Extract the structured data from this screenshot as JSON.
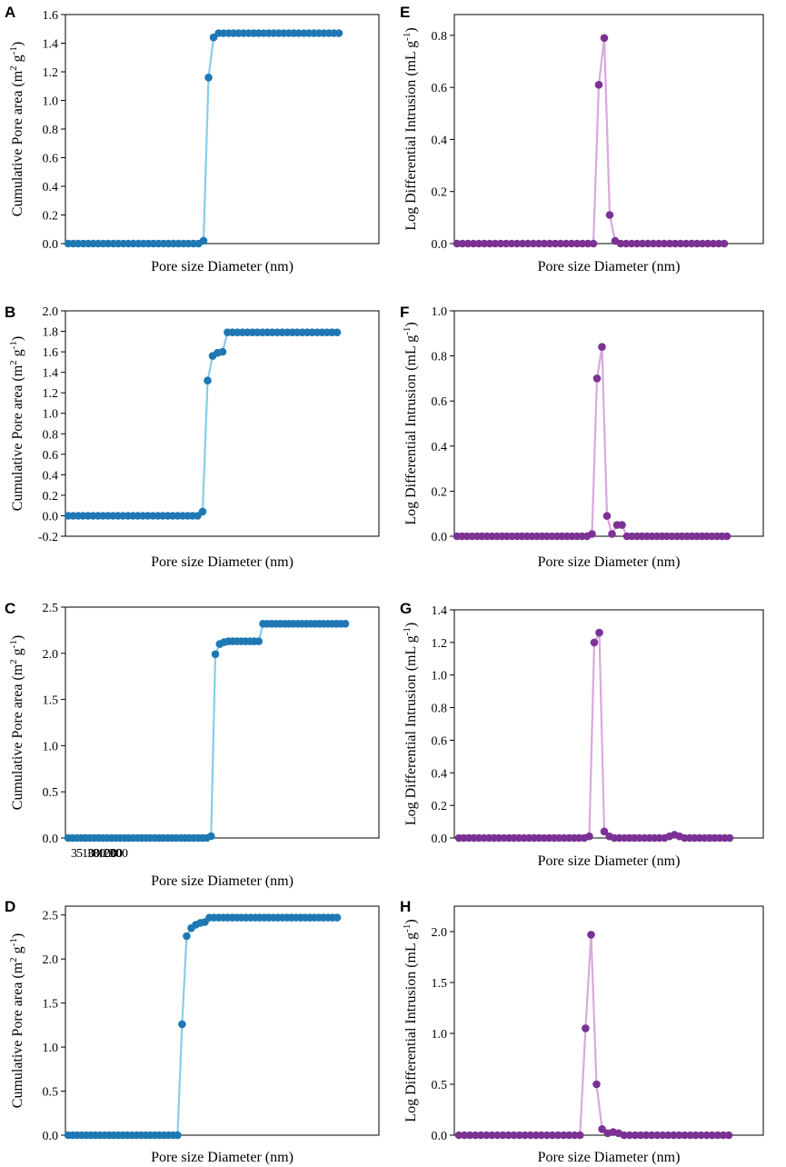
{
  "colors": {
    "blue_line": "#87cdea",
    "blue_marker": "#1f78b4",
    "purple_line": "#d9a8dd",
    "purple_marker": "#7b3294"
  },
  "chart_data": [
    {
      "panel": "A",
      "type": "line",
      "xlabel": "Pore size Diameter (nm)",
      "ylabel": "Cumulative Pore area (m2 g-1)",
      "ylabel_parts": [
        "Cumulative Pore area (m",
        "2",
        " g",
        "-1",
        ")"
      ],
      "ylim": [
        0,
        1.6
      ],
      "yticks": [
        "0.0",
        "0.2",
        "0.4",
        "0.6",
        "0.8",
        "1.0",
        "1.2",
        "1.4",
        "1.6"
      ],
      "xticklabels": [],
      "x": [
        0,
        1,
        2,
        3,
        4,
        5,
        6,
        7,
        8,
        9,
        10,
        11,
        12,
        13,
        14,
        15,
        16,
        17,
        18,
        19,
        20,
        21,
        22,
        23,
        24,
        25,
        26,
        27,
        28,
        29,
        30,
        31,
        32,
        33,
        34,
        35,
        36,
        37,
        38,
        39,
        40,
        41,
        42,
        43,
        44,
        45,
        46,
        47,
        48,
        49,
        50,
        51,
        52,
        53,
        54
      ],
      "y": [
        0,
        0,
        0,
        0,
        0,
        0,
        0,
        0,
        0,
        0,
        0,
        0,
        0,
        0,
        0,
        0,
        0,
        0,
        0,
        0,
        0,
        0,
        0,
        0,
        0,
        0,
        0,
        0.02,
        1.16,
        1.44,
        1.47,
        1.47,
        1.47,
        1.47,
        1.47,
        1.47,
        1.47,
        1.47,
        1.47,
        1.47,
        1.47,
        1.47,
        1.47,
        1.47,
        1.47,
        1.47,
        1.47,
        1.47,
        1.47,
        1.47,
        1.47,
        1.47,
        1.47,
        1.47,
        1.47
      ]
    },
    {
      "panel": "B",
      "type": "line",
      "xlabel": "Pore size Diameter (nm)",
      "ylabel": "Cumulative Pore area (m2 g-1)",
      "ylabel_parts": [
        "Cumulative Pore area (m",
        "2",
        " g",
        "-1",
        ")"
      ],
      "ylim": [
        -0.2,
        2.0
      ],
      "yticks": [
        "-0.2",
        "0.0",
        "0.2",
        "0.4",
        "0.6",
        "0.8",
        "1.0",
        "1.2",
        "1.4",
        "1.6",
        "1.8",
        "2.0"
      ],
      "xticklabels": [],
      "x": [
        0,
        1,
        2,
        3,
        4,
        5,
        6,
        7,
        8,
        9,
        10,
        11,
        12,
        13,
        14,
        15,
        16,
        17,
        18,
        19,
        20,
        21,
        22,
        23,
        24,
        25,
        26,
        27,
        28,
        29,
        30,
        31,
        32,
        33,
        34,
        35,
        36,
        37,
        38,
        39,
        40,
        41,
        42,
        43,
        44,
        45,
        46,
        47,
        48,
        49,
        50,
        51,
        52,
        53,
        54
      ],
      "y": [
        0,
        0,
        0,
        0,
        0,
        0,
        0,
        0,
        0,
        0,
        0,
        0,
        0,
        0,
        0,
        0,
        0,
        0,
        0,
        0,
        0,
        0,
        0,
        0,
        0,
        0,
        0,
        0.04,
        1.32,
        1.56,
        1.59,
        1.6,
        1.79,
        1.79,
        1.79,
        1.79,
        1.79,
        1.79,
        1.79,
        1.79,
        1.79,
        1.79,
        1.79,
        1.79,
        1.79,
        1.79,
        1.79,
        1.79,
        1.79,
        1.79,
        1.79,
        1.79,
        1.79,
        1.79,
        1.79
      ]
    },
    {
      "panel": "C",
      "type": "line",
      "xlabel": "Pore size Diameter (nm)",
      "ylabel": "Cumulative Pore area (m2 g-1)",
      "ylabel_parts": [
        "Cumulative Pore area (m",
        "2",
        " g",
        "-1",
        ")"
      ],
      "ylim": [
        0,
        2.5
      ],
      "yticks": [
        "0.0",
        "0.5",
        "1.0",
        "1.5",
        "2.0",
        "2.5"
      ],
      "xticklabels": [
        "3",
        "5",
        "10",
        "30",
        "80",
        "100",
        "200",
        "300"
      ],
      "x": [
        0,
        1,
        2,
        3,
        4,
        5,
        6,
        7,
        8,
        9,
        10,
        11,
        12,
        13,
        14,
        15,
        16,
        17,
        18,
        19,
        20,
        21,
        22,
        23,
        24,
        25,
        26,
        27,
        28,
        29,
        30,
        31,
        32,
        33,
        34,
        35,
        36,
        37,
        38,
        39,
        40,
        41,
        42,
        43,
        44,
        45,
        46,
        47,
        48,
        49,
        50,
        51,
        52,
        53,
        54,
        55,
        56,
        57,
        58,
        59,
        60,
        61,
        62,
        63,
        64
      ],
      "y": [
        0,
        0,
        0,
        0,
        0,
        0,
        0,
        0,
        0,
        0,
        0,
        0,
        0,
        0,
        0,
        0,
        0,
        0,
        0,
        0,
        0,
        0,
        0,
        0,
        0,
        0,
        0,
        0,
        0,
        0,
        0,
        0,
        0,
        0.02,
        1.99,
        2.1,
        2.12,
        2.13,
        2.13,
        2.13,
        2.13,
        2.13,
        2.13,
        2.13,
        2.13,
        2.32,
        2.32,
        2.32,
        2.32,
        2.32,
        2.32,
        2.32,
        2.32,
        2.32,
        2.32,
        2.32,
        2.32,
        2.32,
        2.32,
        2.32,
        2.32,
        2.32,
        2.32,
        2.32,
        2.32
      ]
    },
    {
      "panel": "D",
      "type": "line",
      "xlabel": "Pore size Diameter (nm)",
      "ylabel": "Cumulative Pore area (m2 g-1)",
      "ylabel_parts": [
        "Cumulative Pore area (m",
        "2",
        " g",
        "-1",
        ")"
      ],
      "ylim": [
        0,
        2.6
      ],
      "yticks": [
        "0.0",
        "0.5",
        "1.0",
        "1.5",
        "2.0",
        "2.5"
      ],
      "xticklabels": [],
      "x": [
        0,
        1,
        2,
        3,
        4,
        5,
        6,
        7,
        8,
        9,
        10,
        11,
        12,
        13,
        14,
        15,
        16,
        17,
        18,
        19,
        20,
        21,
        22,
        23,
        24,
        25,
        26,
        27,
        28,
        29,
        30,
        31,
        32,
        33,
        34,
        35,
        36,
        37,
        38,
        39,
        40,
        41,
        42,
        43,
        44,
        45,
        46,
        47,
        48,
        49,
        50,
        51,
        52,
        53,
        54,
        55,
        56,
        57,
        58,
        59
      ],
      "y": [
        0,
        0,
        0,
        0,
        0,
        0,
        0,
        0,
        0,
        0,
        0,
        0,
        0,
        0,
        0,
        0,
        0,
        0,
        0,
        0,
        0,
        0,
        0,
        0,
        0,
        1.26,
        2.26,
        2.35,
        2.39,
        2.41,
        2.42,
        2.47,
        2.47,
        2.47,
        2.47,
        2.47,
        2.47,
        2.47,
        2.47,
        2.47,
        2.47,
        2.47,
        2.47,
        2.47,
        2.47,
        2.47,
        2.47,
        2.47,
        2.47,
        2.47,
        2.47,
        2.47,
        2.47,
        2.47,
        2.47,
        2.47,
        2.47,
        2.47,
        2.47,
        2.47
      ]
    },
    {
      "panel": "E",
      "type": "line",
      "xlabel": "Pore size Diameter (nm)",
      "ylabel": "Log Differential Intrusion (mL g-1)",
      "ylabel_parts": [
        "Log Differential Intrusion (mL g",
        "-1",
        ")"
      ],
      "ylim": [
        0,
        0.88
      ],
      "yticks": [
        "0.0",
        "0.2",
        "0.4",
        "0.6",
        "0.8"
      ],
      "xticklabels": [],
      "x": [
        0,
        1,
        2,
        3,
        4,
        5,
        6,
        7,
        8,
        9,
        10,
        11,
        12,
        13,
        14,
        15,
        16,
        17,
        18,
        19,
        20,
        21,
        22,
        23,
        24,
        25,
        26,
        27,
        28,
        29,
        30,
        31,
        32,
        33,
        34,
        35,
        36,
        37,
        38,
        39,
        40,
        41,
        42,
        43,
        44,
        45,
        46,
        47,
        48,
        49
      ],
      "y": [
        0,
        0,
        0,
        0,
        0,
        0,
        0,
        0,
        0,
        0,
        0,
        0,
        0,
        0,
        0,
        0,
        0,
        0,
        0,
        0,
        0,
        0,
        0,
        0,
        0,
        0,
        0.61,
        0.79,
        0.11,
        0.01,
        0,
        0,
        0,
        0,
        0,
        0,
        0,
        0,
        0,
        0,
        0,
        0,
        0,
        0,
        0,
        0,
        0,
        0,
        0,
        0
      ]
    },
    {
      "panel": "F",
      "type": "line",
      "xlabel": "Pore size Diameter (nm)",
      "ylabel": "Log Differential Intrusion (mL g-1)",
      "ylabel_parts": [
        "Log Differential Intrusion (mL g",
        "-1",
        ")"
      ],
      "ylim": [
        0,
        1.0
      ],
      "yticks": [
        "0.0",
        "0.2",
        "0.4",
        "0.6",
        "0.8",
        "1.0"
      ],
      "xticklabels": [],
      "x": [
        0,
        1,
        2,
        3,
        4,
        5,
        6,
        7,
        8,
        9,
        10,
        11,
        12,
        13,
        14,
        15,
        16,
        17,
        18,
        19,
        20,
        21,
        22,
        23,
        24,
        25,
        26,
        27,
        28,
        29,
        30,
        31,
        32,
        33,
        34,
        35,
        36,
        37,
        38,
        39,
        40,
        41,
        42,
        43,
        44,
        45,
        46,
        47,
        48,
        49,
        50,
        51,
        52,
        53,
        54
      ],
      "y": [
        0,
        0,
        0,
        0,
        0,
        0,
        0,
        0,
        0,
        0,
        0,
        0,
        0,
        0,
        0,
        0,
        0,
        0,
        0,
        0,
        0,
        0,
        0,
        0,
        0,
        0,
        0,
        0.01,
        0.7,
        0.84,
        0.09,
        0.01,
        0.05,
        0.05,
        0,
        0,
        0,
        0,
        0,
        0,
        0,
        0,
        0,
        0,
        0,
        0,
        0,
        0,
        0,
        0,
        0,
        0,
        0,
        0,
        0
      ]
    },
    {
      "panel": "G",
      "type": "line",
      "xlabel": "Pore size Diameter (nm)",
      "ylabel": "Log Differential Intrusion (mL g-1)",
      "ylabel_parts": [
        "Log Differential Intrusion (mL g",
        "-1",
        ")"
      ],
      "ylim": [
        0,
        1.4
      ],
      "yticks": [
        "0.0",
        "0.2",
        "0.4",
        "0.6",
        "0.8",
        "1.0",
        "1.2",
        "1.4"
      ],
      "xticklabels": [],
      "x": [
        0,
        1,
        2,
        3,
        4,
        5,
        6,
        7,
        8,
        9,
        10,
        11,
        12,
        13,
        14,
        15,
        16,
        17,
        18,
        19,
        20,
        21,
        22,
        23,
        24,
        25,
        26,
        27,
        28,
        29,
        30,
        31,
        32,
        33,
        34,
        35,
        36,
        37,
        38,
        39,
        40,
        41,
        42,
        43,
        44,
        45,
        46,
        47,
        48,
        49,
        50,
        51,
        52,
        53,
        54
      ],
      "y": [
        0,
        0,
        0,
        0,
        0,
        0,
        0,
        0,
        0,
        0,
        0,
        0,
        0,
        0,
        0,
        0,
        0,
        0,
        0,
        0,
        0,
        0,
        0,
        0,
        0,
        0,
        0.01,
        1.2,
        1.26,
        0.04,
        0.01,
        0,
        0,
        0,
        0,
        0,
        0,
        0,
        0,
        0,
        0,
        0,
        0.01,
        0.02,
        0.01,
        0,
        0,
        0,
        0,
        0,
        0,
        0,
        0,
        0,
        0
      ]
    },
    {
      "panel": "H",
      "type": "line",
      "xlabel": "Pore size Diameter (nm)",
      "ylabel": "Log Differential Intrusion (mL g-1)",
      "ylabel_parts": [
        "Log Differential Intrusion (mL g",
        "-1",
        ")"
      ],
      "ylim": [
        0,
        2.25
      ],
      "yticks": [
        "0.0",
        "0.5",
        "1.0",
        "1.5",
        "2.0"
      ],
      "xticklabels": [],
      "x": [
        0,
        1,
        2,
        3,
        4,
        5,
        6,
        7,
        8,
        9,
        10,
        11,
        12,
        13,
        14,
        15,
        16,
        17,
        18,
        19,
        20,
        21,
        22,
        23,
        24,
        25,
        26,
        27,
        28,
        29,
        30,
        31,
        32,
        33,
        34,
        35,
        36,
        37,
        38,
        39,
        40,
        41,
        42,
        43,
        44,
        45,
        46,
        47,
        48,
        49
      ],
      "y": [
        0,
        0,
        0,
        0,
        0,
        0,
        0,
        0,
        0,
        0,
        0,
        0,
        0,
        0,
        0,
        0,
        0,
        0,
        0,
        0,
        0,
        0,
        0,
        1.05,
        1.97,
        0.5,
        0.06,
        0.02,
        0.03,
        0.02,
        0,
        0,
        0,
        0,
        0,
        0,
        0,
        0,
        0,
        0,
        0,
        0,
        0,
        0,
        0,
        0,
        0,
        0,
        0,
        0
      ]
    }
  ]
}
